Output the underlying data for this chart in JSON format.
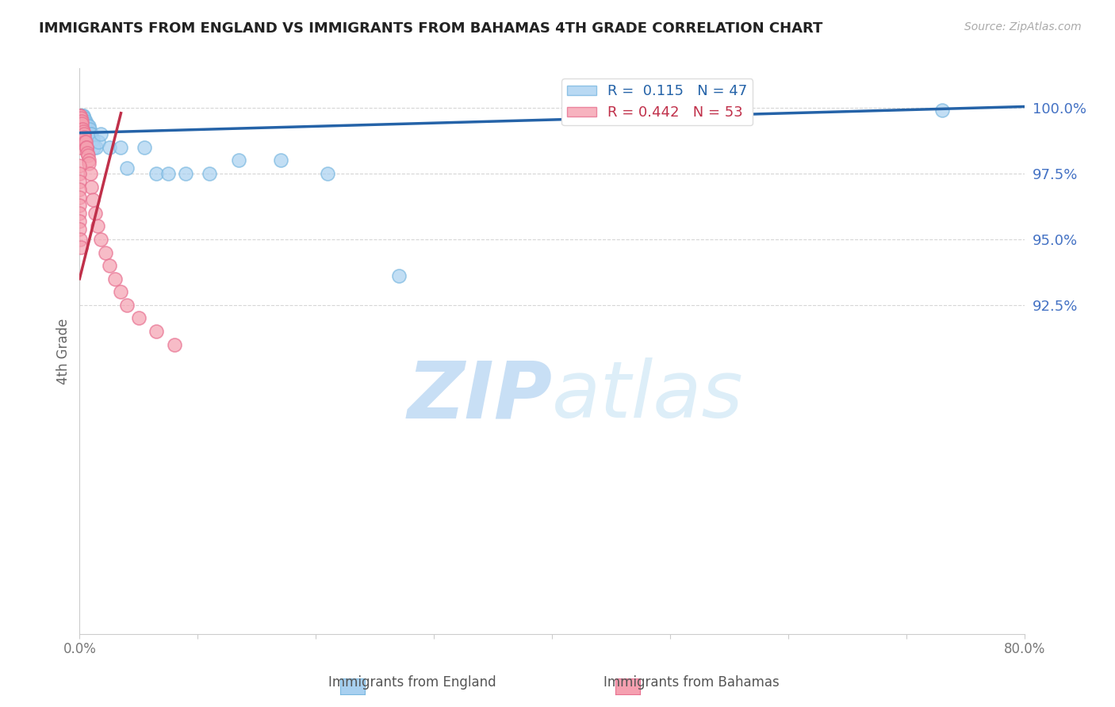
{
  "title": "IMMIGRANTS FROM ENGLAND VS IMMIGRANTS FROM BAHAMAS 4TH GRADE CORRELATION CHART",
  "source": "Source: ZipAtlas.com",
  "xlabel_england": "Immigrants from England",
  "xlabel_bahamas": "Immigrants from Bahamas",
  "ylabel": "4th Grade",
  "xlim": [
    0.0,
    80.0
  ],
  "ylim": [
    80.0,
    101.5
  ],
  "yticks": [
    92.5,
    95.0,
    97.5,
    100.0
  ],
  "ytick_labels": [
    "92.5%",
    "95.0%",
    "97.5%",
    "100.0%"
  ],
  "england_R": 0.115,
  "england_N": 47,
  "bahamas_R": 0.442,
  "bahamas_N": 53,
  "england_color": "#a8d0f0",
  "england_edge_color": "#7ab8e0",
  "bahamas_color": "#f5a0b0",
  "bahamas_edge_color": "#e87090",
  "england_line_color": "#2563a8",
  "bahamas_line_color": "#c0304a",
  "background_color": "#ffffff",
  "grid_color": "#cccccc",
  "ytick_color": "#4472c4",
  "watermark_zip": "ZIP",
  "watermark_atlas": "atlas",
  "watermark_color": "#c8dff5",
  "eng_line_x0": 0.0,
  "eng_line_y0": 99.05,
  "eng_line_x1": 80.0,
  "eng_line_y1": 100.05,
  "bah_line_x0": 0.0,
  "bah_line_y0": 93.5,
  "bah_line_x1": 3.5,
  "bah_line_y1": 99.8,
  "eng_scatter_x": [
    0.0,
    0.0,
    0.05,
    0.05,
    0.1,
    0.1,
    0.15,
    0.15,
    0.2,
    0.2,
    0.25,
    0.25,
    0.3,
    0.3,
    0.35,
    0.4,
    0.4,
    0.45,
    0.5,
    0.5,
    0.55,
    0.6,
    0.65,
    0.7,
    0.75,
    0.8,
    0.85,
    0.9,
    1.0,
    1.1,
    1.2,
    1.4,
    1.6,
    1.8,
    2.5,
    3.5,
    4.0,
    5.5,
    6.5,
    7.5,
    9.0,
    11.0,
    13.5,
    17.0,
    21.0,
    27.0,
    73.0
  ],
  "eng_scatter_y": [
    99.7,
    99.5,
    99.7,
    99.5,
    99.7,
    99.3,
    99.7,
    99.5,
    99.7,
    99.4,
    99.7,
    99.2,
    99.7,
    99.1,
    99.5,
    99.6,
    99.0,
    99.4,
    99.5,
    99.0,
    99.3,
    99.4,
    99.1,
    99.3,
    99.2,
    99.3,
    99.2,
    99.0,
    99.0,
    98.8,
    98.5,
    98.5,
    98.7,
    99.0,
    98.5,
    98.5,
    97.7,
    98.5,
    97.5,
    97.5,
    97.5,
    97.5,
    98.0,
    98.0,
    97.5,
    93.6,
    99.9
  ],
  "bah_scatter_x": [
    0.0,
    0.0,
    0.0,
    0.0,
    0.0,
    0.0,
    0.05,
    0.05,
    0.1,
    0.1,
    0.1,
    0.15,
    0.15,
    0.2,
    0.2,
    0.25,
    0.3,
    0.3,
    0.35,
    0.4,
    0.45,
    0.5,
    0.55,
    0.6,
    0.65,
    0.7,
    0.75,
    0.8,
    0.9,
    1.0,
    1.1,
    1.3,
    1.5,
    1.8,
    2.2,
    2.5,
    3.0,
    3.5,
    4.0,
    5.0,
    6.5,
    8.0,
    0.0,
    0.0,
    0.0,
    0.0,
    0.0,
    0.0,
    0.0,
    0.0,
    0.0,
    0.05,
    0.1
  ],
  "bah_scatter_y": [
    99.7,
    99.5,
    99.3,
    99.0,
    98.7,
    98.5,
    99.7,
    99.5,
    99.6,
    99.3,
    99.0,
    99.5,
    99.2,
    99.4,
    99.0,
    99.2,
    99.1,
    98.8,
    99.0,
    98.9,
    98.7,
    98.7,
    98.5,
    98.5,
    98.3,
    98.2,
    98.0,
    97.9,
    97.5,
    97.0,
    96.5,
    96.0,
    95.5,
    95.0,
    94.5,
    94.0,
    93.5,
    93.0,
    92.5,
    92.0,
    91.5,
    91.0,
    97.8,
    97.5,
    97.2,
    96.9,
    96.6,
    96.3,
    96.0,
    95.7,
    95.4,
    95.0,
    94.7
  ]
}
